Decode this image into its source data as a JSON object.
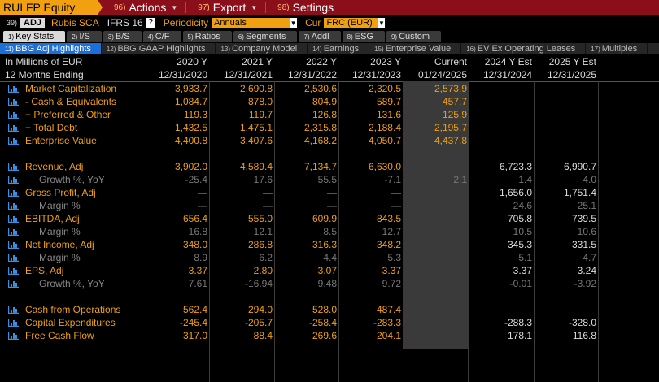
{
  "topbar": {
    "ticker": "RUI FP Equity",
    "menus": [
      {
        "num": "96)",
        "label": "Actions"
      },
      {
        "num": "97)",
        "label": "Export"
      },
      {
        "num": "98)",
        "label": "Settings"
      }
    ]
  },
  "secbar": {
    "num": "39)",
    "badge": "ADJ",
    "company": "Rubis SCA",
    "standard": "IFRS 16",
    "help": "?",
    "periodicity_label": "Periodicity",
    "periodicity_value": "Annuals",
    "currency_label": "Cur",
    "currency_value": "FRC (EUR)"
  },
  "tabs1": [
    {
      "num": "1)",
      "label": "Key Stats",
      "active": true
    },
    {
      "num": "2)",
      "label": "I/S"
    },
    {
      "num": "3)",
      "label": "B/S"
    },
    {
      "num": "4)",
      "label": "C/F"
    },
    {
      "num": "5)",
      "label": "Ratios"
    },
    {
      "num": "6)",
      "label": "Segments"
    },
    {
      "num": "7)",
      "label": "Addl"
    },
    {
      "num": "8)",
      "label": "ESG"
    },
    {
      "num": "9)",
      "label": "Custom"
    }
  ],
  "tabs2": [
    {
      "num": "11)",
      "label": "BBG Adj Highlights",
      "active": true
    },
    {
      "num": "12)",
      "label": "BBG GAAP Highlights"
    },
    {
      "num": "13)",
      "label": "Company Model"
    },
    {
      "num": "14)",
      "label": "Earnings"
    },
    {
      "num": "15)",
      "label": "Enterprise Value"
    },
    {
      "num": "16)",
      "label": "EV Ex Operating Leases"
    },
    {
      "num": "17)",
      "label": "Multiples"
    }
  ],
  "header": {
    "row1_label": "In Millions of EUR",
    "row2_label": "12 Months Ending",
    "columns": [
      {
        "top": "2020 Y",
        "bottom": "12/31/2020"
      },
      {
        "top": "2021 Y",
        "bottom": "12/31/2021"
      },
      {
        "top": "2022 Y",
        "bottom": "12/31/2022"
      },
      {
        "top": "2023 Y",
        "bottom": "12/31/2023"
      },
      {
        "top": "Current",
        "bottom": "01/24/2025"
      },
      {
        "top": "2024 Y Est",
        "bottom": "12/31/2024"
      },
      {
        "top": "2025 Y Est",
        "bottom": "12/31/2025"
      }
    ]
  },
  "rows": [
    {
      "label": "Market Capitalization",
      "type": "main",
      "values": [
        "3,933.7",
        "2,690.8",
        "2,530.6",
        "2,320.5",
        "2,573.9",
        "",
        ""
      ]
    },
    {
      "label": "- Cash & Equivalents",
      "type": "main",
      "values": [
        "1,084.7",
        "878.0",
        "804.9",
        "589.7",
        "457.7",
        "",
        ""
      ]
    },
    {
      "label": "+ Preferred & Other",
      "type": "main",
      "values": [
        "119.3",
        "119.7",
        "126.8",
        "131.6",
        "125.9",
        "",
        ""
      ]
    },
    {
      "label": "+ Total Debt",
      "type": "main",
      "values": [
        "1,432.5",
        "1,475.1",
        "2,315.8",
        "2,188.4",
        "2,195.7",
        "",
        ""
      ]
    },
    {
      "label": "Enterprise Value",
      "type": "main",
      "values": [
        "4,400.8",
        "3,407.6",
        "4,168.2",
        "4,050.7",
        "4,437.8",
        "",
        ""
      ]
    },
    {
      "label": "Revenue, Adj",
      "type": "main",
      "gap": true,
      "values": [
        "3,902.0",
        "4,589.4",
        "7,134.7",
        "6,630.0",
        "",
        "6,723.3",
        "6,990.7"
      ]
    },
    {
      "label": "Growth %, YoY",
      "type": "sub",
      "values": [
        "-25.4",
        "17.6",
        "55.5",
        "-7.1",
        "2.1",
        "1.4",
        "4.0"
      ]
    },
    {
      "label": "Gross Profit, Adj",
      "type": "main",
      "values": [
        "—",
        "—",
        "—",
        "—",
        "",
        "1,656.0",
        "1,751.4"
      ]
    },
    {
      "label": "Margin %",
      "type": "sub",
      "values": [
        "—",
        "—",
        "—",
        "—",
        "",
        "24.6",
        "25.1"
      ]
    },
    {
      "label": "EBITDA, Adj",
      "type": "main",
      "values": [
        "656.4",
        "555.0",
        "609.9",
        "843.5",
        "",
        "705.8",
        "739.5"
      ]
    },
    {
      "label": "Margin %",
      "type": "sub",
      "values": [
        "16.8",
        "12.1",
        "8.5",
        "12.7",
        "",
        "10.5",
        "10.6"
      ]
    },
    {
      "label": "Net Income, Adj",
      "type": "main",
      "values": [
        "348.0",
        "286.8",
        "316.3",
        "348.2",
        "",
        "345.3",
        "331.5"
      ]
    },
    {
      "label": "Margin %",
      "type": "sub",
      "values": [
        "8.9",
        "6.2",
        "4.4",
        "5.3",
        "",
        "5.1",
        "4.7"
      ]
    },
    {
      "label": "EPS, Adj",
      "type": "main",
      "values": [
        "3.37",
        "2.80",
        "3.07",
        "3.37",
        "",
        "3.37",
        "3.24"
      ]
    },
    {
      "label": "Growth %, YoY",
      "type": "sub",
      "values": [
        "7.61",
        "-16.94",
        "9.48",
        "9.72",
        "",
        "-0.01",
        "-3.92"
      ]
    },
    {
      "label": "Cash from Operations",
      "type": "main",
      "gap": true,
      "values": [
        "562.4",
        "294.0",
        "528.0",
        "487.4",
        "",
        "",
        ""
      ]
    },
    {
      "label": "Capital Expenditures",
      "type": "main",
      "values": [
        "-245.4",
        "-205.7",
        "-258.4",
        "-283.3",
        "",
        "-288.3",
        "-328.0"
      ]
    },
    {
      "label": "Free Cash Flow",
      "type": "main",
      "values": [
        "317.0",
        "88.4",
        "269.6",
        "204.1",
        "",
        "178.1",
        "116.8"
      ]
    }
  ],
  "colors": {
    "orange": "#f0a010",
    "red_bar": "#8b0f1a",
    "blue_tab": "#1c6fd6",
    "current_col": "#3a3a3a"
  }
}
